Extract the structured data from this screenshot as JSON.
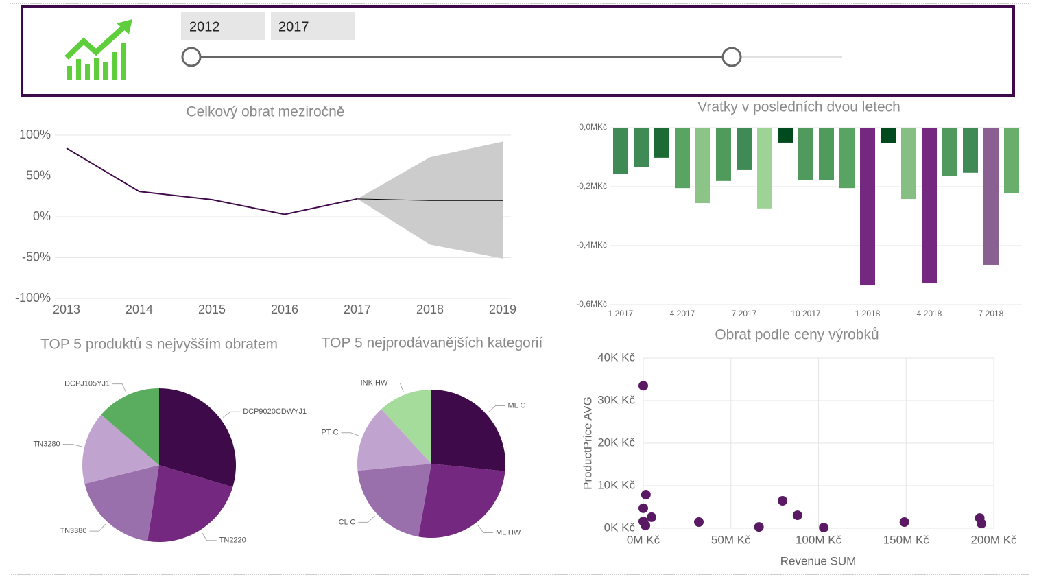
{
  "slicer": {
    "from": "2012",
    "to": "2017"
  },
  "chart_data": [
    {
      "type": "line",
      "title": "Celkový obrat meziročně",
      "categories": [
        "2013",
        "2014",
        "2015",
        "2016",
        "2017",
        "2018",
        "2019"
      ],
      "series": [
        {
          "color": "#3f0a4a",
          "values": [
            84,
            31,
            21,
            3,
            22,
            null,
            null
          ]
        },
        {
          "color": "#000000",
          "values": [
            null,
            null,
            null,
            null,
            22,
            20,
            20
          ]
        }
      ],
      "forecast_band": {
        "color": "#cccccc",
        "upper": [
          null,
          null,
          null,
          null,
          22,
          73,
          92
        ],
        "lower": [
          null,
          null,
          null,
          null,
          22,
          -34,
          -51
        ]
      },
      "ylim": [
        -100,
        100
      ],
      "yticks": [
        {
          "value": 100,
          "label": "100%"
        },
        {
          "value": 50,
          "label": "50%"
        },
        {
          "value": 0,
          "label": "0%"
        },
        {
          "value": -50,
          "label": "-50%"
        },
        {
          "value": -100,
          "label": "-100%"
        }
      ],
      "grid": true
    },
    {
      "type": "bar",
      "title": "Vratky v posledních dvou letech",
      "categories": [
        "1 2017",
        null,
        null,
        "4 2017",
        null,
        null,
        "7 2017",
        null,
        null,
        "10 2017",
        null,
        null,
        "1 2018",
        null,
        null,
        "4 2018",
        null,
        null,
        "7 2018",
        null
      ],
      "values": [
        -0.158,
        -0.133,
        -0.102,
        -0.205,
        -0.256,
        -0.181,
        -0.144,
        -0.274,
        -0.051,
        -0.177,
        -0.177,
        -0.205,
        -0.535,
        -0.053,
        -0.242,
        -0.528,
        -0.163,
        -0.153,
        -0.465,
        -0.221
      ],
      "colors": [
        "#3f8a55",
        "#3f8a55",
        "#1e6a35",
        "#5aa463",
        "#8cc488",
        "#4f9a5c",
        "#3f8a55",
        "#9dd495",
        "#004a1e",
        "#4f9a5c",
        "#4f9a5c",
        "#5aa463",
        "#75287f",
        "#004a1e",
        "#86bf83",
        "#75287f",
        "#4f9a5c",
        "#3f8a55",
        "#8a5f92",
        "#6aae6c"
      ],
      "ylim": [
        -0.6,
        0
      ],
      "yticks": [
        {
          "value": 0,
          "label": "0,0MKč"
        },
        {
          "value": -0.2,
          "label": "-0,2MKč"
        },
        {
          "value": -0.4,
          "label": "-0,4MKč"
        },
        {
          "value": -0.6,
          "label": "-0,6MKč"
        }
      ],
      "grid": true
    },
    {
      "type": "pie",
      "title": "TOP 5 produktů s nejvyšším obratem",
      "categories": [
        "DCP9020CDWYJ1",
        "TN2220",
        "TN3380",
        "TN3280",
        "DCPJ105YJ1"
      ],
      "values": [
        29.6,
        22.8,
        18.7,
        15.3,
        13.6
      ],
      "colors": [
        "#3f0a4a",
        "#75287f",
        "#9a70ac",
        "#c1a3cf",
        "#5aad5e"
      ]
    },
    {
      "type": "pie",
      "title": "TOP 5 nejprodávanějších kategorií",
      "categories": [
        "ML C",
        "ML HW",
        "CL C",
        "PT C",
        "INK HW"
      ],
      "values": [
        26.6,
        26.2,
        20.7,
        14.7,
        11.8
      ],
      "colors": [
        "#3f0a4a",
        "#75287f",
        "#9a70ac",
        "#c1a3cf",
        "#a5dc9c"
      ]
    },
    {
      "type": "scatter",
      "title": "Obrat podle ceny výrobků",
      "x_label": "Revenue SUM",
      "y_label": "ProductPrice AVG",
      "color": "#5a1a63",
      "x": [
        0,
        1500000,
        0,
        4700000,
        0,
        1200000,
        31700000,
        66000000,
        79500000,
        88000000,
        103000000,
        149000000,
        192000000,
        193000000
      ],
      "values": [
        33500,
        7900,
        4700,
        2600,
        1600,
        650,
        1450,
        300,
        6450,
        3050,
        150,
        1450,
        2400,
        1100
      ],
      "xlim": [
        0,
        200000000
      ],
      "xticks": [
        {
          "value": 0,
          "label": "0M Kč"
        },
        {
          "value": 50000000,
          "label": "50M Kč"
        },
        {
          "value": 100000000,
          "label": "100M Kč"
        },
        {
          "value": 150000000,
          "label": "150M Kč"
        },
        {
          "value": 200000000,
          "label": "200M Kč"
        }
      ],
      "ylim": [
        0,
        40000
      ],
      "yticks": [
        {
          "value": 0,
          "label": "0K Kč"
        },
        {
          "value": 10000,
          "label": "10K Kč"
        },
        {
          "value": 20000,
          "label": "20K Kč"
        },
        {
          "value": 30000,
          "label": "30K Kč"
        },
        {
          "value": 40000,
          "label": "40K Kč"
        }
      ],
      "grid": true
    }
  ]
}
